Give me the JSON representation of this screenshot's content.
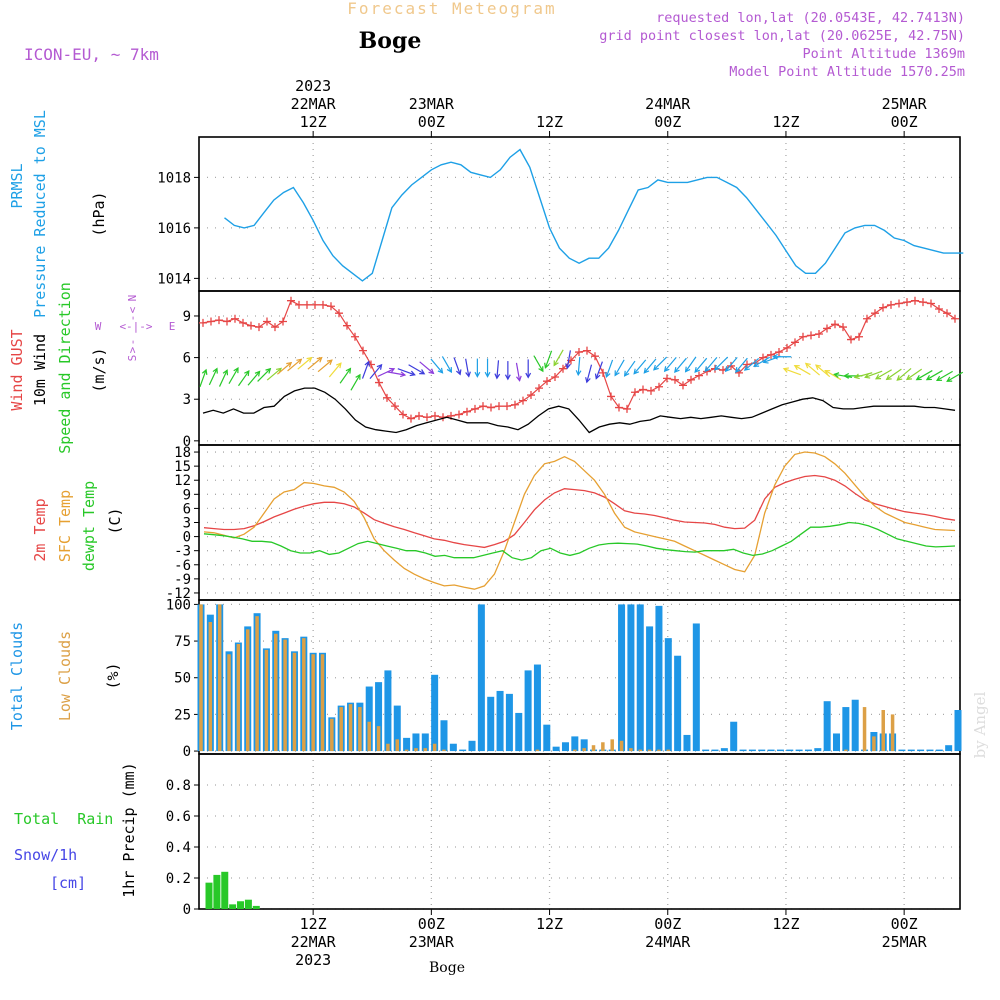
{
  "header": {
    "top_title": "Forecast Meteogram",
    "location": "Boge",
    "model": "ICON-EU, ~ 7km",
    "requested": "requested lon,lat (20.0543E, 42.7413N)",
    "grid_point": "grid point closest lon,lat (20.0625E, 42.75N)",
    "point_altitude": "Point Altitude 1369m",
    "model_altitude": "Model Point Altitude 1570.25m",
    "watermark": "by Angel",
    "bottom_location": "Boge"
  },
  "colors": {
    "pressure": "#1ea0e6",
    "gust": "#e64646",
    "wind": "#000000",
    "t2m": "#e64646",
    "sfc": "#e6a032",
    "dewpt": "#28c828",
    "total_clouds": "#1e96e6",
    "low_clouds": "#dca046",
    "rain": "#28c828",
    "snow": "#4646e6",
    "purple": "#b45ad2",
    "header_yellow": "#f0c88c"
  },
  "time_axis": {
    "start": "2023-03-22T03:00Z",
    "step_hours": 1,
    "top_ticks": [
      {
        "h": 9,
        "lines": [
          "2023",
          "22MAR",
          "12Z"
        ]
      },
      {
        "h": 21,
        "lines": [
          "23MAR",
          "00Z"
        ]
      },
      {
        "h": 33,
        "lines": [
          "12Z"
        ]
      },
      {
        "h": 45,
        "lines": [
          "24MAR",
          "00Z"
        ]
      },
      {
        "h": 57,
        "lines": [
          "12Z"
        ]
      },
      {
        "h": 69,
        "lines": [
          "25MAR",
          "00Z"
        ]
      }
    ],
    "bottom_ticks": [
      {
        "h": 9,
        "lines": [
          "12Z",
          "22MAR",
          "2023"
        ]
      },
      {
        "h": 21,
        "lines": [
          "00Z",
          "23MAR"
        ]
      },
      {
        "h": 33,
        "lines": [
          "12Z"
        ]
      },
      {
        "h": 45,
        "lines": [
          "00Z",
          "24MAR"
        ]
      },
      {
        "h": 57,
        "lines": [
          "12Z"
        ]
      },
      {
        "h": 69,
        "lines": [
          "00Z",
          "25MAR"
        ]
      }
    ]
  },
  "chart_data": [
    {
      "type": "line",
      "id": "pressure",
      "ylabel_lines": [
        "PRMSL",
        "Pressure Reduced to MSL",
        "(hPa)"
      ],
      "ylim": [
        1013.5,
        1019.6
      ],
      "yticks": [
        1014,
        1016,
        1018
      ],
      "series": [
        {
          "name": "PRMSL",
          "values": [
            1016.4,
            1016.1,
            1016.0,
            1016.1,
            1016.6,
            1017.1,
            1017.4,
            1017.6,
            1017.0,
            1016.3,
            1015.5,
            1014.9,
            1014.5,
            1014.2,
            1013.9,
            1014.2,
            1015.5,
            1016.8,
            1017.3,
            1017.7,
            1018.0,
            1018.3,
            1018.5,
            1018.6,
            1018.5,
            1018.2,
            1018.1,
            1018.0,
            1018.3,
            1018.8,
            1019.1,
            1018.4,
            1017.2,
            1016.0,
            1015.2,
            1014.8,
            1014.6,
            1014.8,
            1014.8,
            1015.2,
            1015.9,
            1016.7,
            1017.5,
            1017.6,
            1017.9,
            1017.8,
            1017.8,
            1017.8,
            1017.9,
            1018.0,
            1018.0,
            1017.8,
            1017.6,
            1017.2,
            1016.7,
            1016.2,
            1015.7,
            1015.1,
            1014.5,
            1014.2,
            1014.2,
            1014.6,
            1015.2,
            1015.8,
            1016.0,
            1016.1,
            1016.1,
            1015.9,
            1015.6,
            1015.5,
            1015.3,
            1015.2,
            1015.1,
            1015.0,
            1015.0,
            1015.0
          ]
        }
      ]
    },
    {
      "type": "line",
      "id": "wind",
      "ylabel_lines": [
        "Wind GUST",
        "10m Wind",
        "Speed and Direction",
        "(m/s)"
      ],
      "compass": {
        "n": "N",
        "w": "W",
        "e": "E",
        "s": "S"
      },
      "ylim": [
        -0.3,
        10.8
      ],
      "yticks": [
        0,
        3,
        6,
        9
      ],
      "series": [
        {
          "name": "Wind GUST",
          "values": [
            8.5,
            8.6,
            8.7,
            8.6,
            8.8,
            8.5,
            8.3,
            8.2,
            8.6,
            8.2,
            8.6,
            10.1,
            9.8,
            9.8,
            9.8,
            9.8,
            9.7,
            9.2,
            8.3,
            7.5,
            6.5,
            5.5,
            4.2,
            3.1,
            2.5,
            1.9,
            1.6,
            1.8,
            1.7,
            1.8,
            1.7,
            1.8,
            1.9,
            2.1,
            2.3,
            2.5,
            2.4,
            2.5,
            2.5,
            2.6,
            2.9,
            3.3,
            3.8,
            4.3,
            4.6,
            5.2,
            5.8,
            6.4,
            6.5,
            6.1,
            4.9,
            3.2,
            2.4,
            2.3,
            3.5,
            3.7,
            3.6,
            3.9,
            4.5,
            4.4,
            4.0,
            4.4,
            4.7,
            5.0,
            5.2,
            5.1,
            5.4,
            4.9,
            5.5,
            5.6,
            6.0,
            6.2,
            6.4,
            6.7,
            7.1,
            7.5,
            7.6,
            7.7,
            8.1,
            8.4,
            8.2,
            7.3,
            7.5,
            8.8,
            9.2,
            9.6,
            9.8,
            9.9,
            10.0,
            10.1,
            10.0,
            9.9,
            9.5,
            9.2,
            8.8
          ]
        },
        {
          "name": "10m Wind",
          "values": [
            2.0,
            2.2,
            2.0,
            2.3,
            2.0,
            2.0,
            2.4,
            2.5,
            3.2,
            3.6,
            3.8,
            3.8,
            3.5,
            3.0,
            2.3,
            1.5,
            1.0,
            0.8,
            0.7,
            0.6,
            0.8,
            1.1,
            1.3,
            1.5,
            1.7,
            1.5,
            1.3,
            1.3,
            1.3,
            1.1,
            1.0,
            0.8,
            1.2,
            1.8,
            2.3,
            2.5,
            2.3,
            1.5,
            0.6,
            1.0,
            1.2,
            1.3,
            1.2,
            1.4,
            1.5,
            1.8,
            1.7,
            1.6,
            1.7,
            1.6,
            1.7,
            1.8,
            1.7,
            1.6,
            1.7,
            2.0,
            2.3,
            2.6,
            2.8,
            3.0,
            3.1,
            2.9,
            2.4,
            2.3,
            2.3,
            2.4,
            2.5,
            2.5,
            2.5,
            2.5,
            2.5,
            2.4,
            2.4,
            2.3,
            2.2
          ]
        }
      ],
      "arrows": {
        "dir_deg": [
          200,
          205,
          205,
          210,
          215,
          220,
          225,
          230,
          230,
          230,
          230,
          230,
          230,
          220,
          215,
          210,
          200,
          220,
          245,
          280,
          290,
          300,
          310,
          320,
          330,
          340,
          350,
          0,
          0,
          5,
          0,
          350,
          0,
          330,
          20,
          30,
          10,
          5,
          15,
          20,
          20,
          30,
          35,
          40,
          40,
          45,
          40,
          40,
          35,
          40,
          40,
          45,
          40,
          40,
          50,
          60,
          70,
          90,
          110,
          120,
          130,
          130,
          120,
          100,
          90,
          75,
          70,
          60,
          55,
          50,
          55,
          60,
          60,
          60,
          60
        ],
        "colors": [
          "#28c828",
          "#28c828",
          "#28c828",
          "#28c828",
          "#28c828",
          "#28c828",
          "#28c828",
          "#8cd232",
          "#e6a032",
          "#e6a032",
          "#f0dc3c",
          "#e6a032",
          "#e6a032",
          "#f0dc3c",
          "#28c828",
          "#28c828",
          "#3c3cdc",
          "#3c3cdc",
          "#8c3cdc",
          "#8c3cdc",
          "#3c3cdc",
          "#3c3cdc",
          "#8c3cdc",
          "#1ea0e6",
          "#1ea0e6",
          "#3c3cdc",
          "#3c3cdc",
          "#1ea0e6",
          "#1ea0e6",
          "#3c3cdc",
          "#3c3cdc",
          "#8c3cdc",
          "#3c3cdc",
          "#28c828",
          "#28c828",
          "#8cd232",
          "#3c3cdc",
          "#1ea0e6",
          "#3c3cdc",
          "#3c3cdc",
          "#1ea0e6",
          "#1ea0e6",
          "#1ea0e6",
          "#1ea0e6",
          "#1ea0e6",
          "#1ea0e6",
          "#1ea0e6",
          "#1ea0e6",
          "#1ea0e6",
          "#1ea0e6",
          "#1ea0e6",
          "#1ea0e6",
          "#1ea0e6",
          "#1ea0e6",
          "#1ea0e6",
          "#1ea0e6",
          "#1ea0e6",
          "#1ea0e6",
          "#f0dc3c",
          "#f0dc3c",
          "#f0dc3c",
          "#f0dc3c",
          "#f0dc3c",
          "#28c828",
          "#28c828",
          "#8cd232",
          "#8cd232",
          "#8cd232",
          "#8cd232",
          "#8cd232",
          "#8cd232",
          "#28c828",
          "#28c828",
          "#28c828",
          "#28c828"
        ]
      }
    },
    {
      "type": "line",
      "id": "temperature",
      "ylabel_lines": [
        "2m Temp",
        "SFC Temp",
        "dewpt Temp",
        "(C)"
      ],
      "ylim": [
        -13.5,
        19.5
      ],
      "yticks": [
        -12,
        -9,
        -6,
        -3,
        0,
        3,
        6,
        9,
        12,
        15,
        18
      ],
      "series": [
        {
          "name": "2m Temp",
          "values": [
            1.9,
            1.7,
            1.5,
            1.5,
            1.7,
            2.3,
            3.2,
            4.2,
            5.0,
            5.8,
            6.5,
            7.0,
            7.3,
            7.3,
            7.0,
            6.3,
            5.0,
            3.6,
            2.8,
            2.1,
            1.5,
            0.8,
            0.2,
            -0.5,
            -0.8,
            -1.3,
            -1.7,
            -2.0,
            -2.3,
            -1.7,
            -1.0,
            0.4,
            3.0,
            5.7,
            7.8,
            9.3,
            10.2,
            10.0,
            9.8,
            9.3,
            8.4,
            7.0,
            5.5,
            5.0,
            4.8,
            4.5,
            4.0,
            3.5,
            3.1,
            3.0,
            2.9,
            2.6,
            2.0,
            1.7,
            1.8,
            3.5,
            8.0,
            10.5,
            11.5,
            12.2,
            12.8,
            13.0,
            12.7,
            12.0,
            10.8,
            9.2,
            7.8,
            7.0,
            6.4,
            5.8,
            5.3,
            5.0,
            4.7,
            4.3,
            3.8,
            3.5
          ]
        },
        {
          "name": "SFC Temp",
          "values": [
            1.0,
            0.8,
            0.3,
            -0.3,
            0.5,
            2.0,
            5.0,
            8.0,
            9.5,
            10.0,
            11.5,
            11.3,
            10.8,
            10.5,
            9.5,
            7.5,
            4.0,
            -0.5,
            -3.0,
            -5.0,
            -6.8,
            -8.0,
            -9.0,
            -9.8,
            -10.5,
            -10.3,
            -10.8,
            -11.2,
            -10.5,
            -8.0,
            -3.0,
            3.0,
            9.0,
            13.0,
            15.5,
            16.0,
            17.0,
            16.0,
            14.0,
            12.0,
            9.0,
            5.0,
            2.0,
            1.0,
            0.5,
            0.0,
            -0.5,
            -1.0,
            -2.0,
            -3.0,
            -4.0,
            -5.0,
            -6.0,
            -7.0,
            -7.5,
            -4.0,
            5.0,
            11.0,
            15.0,
            17.5,
            18.0,
            17.8,
            17.0,
            15.5,
            13.5,
            11.0,
            8.5,
            6.5,
            5.0,
            4.0,
            3.0,
            2.5,
            2.0,
            1.5,
            1.4,
            1.3
          ]
        },
        {
          "name": "dewpt Temp",
          "values": [
            0.6,
            0.4,
            0.2,
            -0.1,
            -0.5,
            -1.0,
            -1.0,
            -1.2,
            -2.0,
            -3.0,
            -3.5,
            -3.5,
            -3.0,
            -3.8,
            -3.5,
            -2.5,
            -1.5,
            -1.0,
            -1.5,
            -2.0,
            -2.5,
            -3.0,
            -3.0,
            -3.5,
            -4.2,
            -4.0,
            -4.5,
            -4.5,
            -4.5,
            -4.0,
            -3.5,
            -3.0,
            -4.5,
            -5.0,
            -4.5,
            -3.0,
            -2.5,
            -3.5,
            -4.0,
            -3.5,
            -2.5,
            -1.8,
            -1.5,
            -1.4,
            -1.5,
            -1.6,
            -2.0,
            -2.5,
            -2.8,
            -3.0,
            -3.2,
            -3.3,
            -3.0,
            -3.0,
            -3.0,
            -2.7,
            -3.5,
            -4.0,
            -3.7,
            -3.0,
            -2.0,
            -1.0,
            0.5,
            2.0,
            2.0,
            2.2,
            2.5,
            3.0,
            2.8,
            2.3,
            1.5,
            0.5,
            -0.5,
            -1.0,
            -1.5,
            -2.0,
            -2.2,
            -2.1,
            -2.0
          ]
        }
      ]
    },
    {
      "type": "bar",
      "id": "clouds",
      "ylabel_lines": [
        "Total Clouds",
        "Low Clouds",
        "(%)"
      ],
      "ylim": [
        -2,
        103
      ],
      "yticks": [
        0,
        25,
        50,
        75,
        100
      ],
      "series": [
        {
          "name": "Total Clouds",
          "values": [
            100,
            93,
            100,
            68,
            74,
            85,
            94,
            70,
            82,
            77,
            68,
            78,
            67,
            67,
            23,
            31,
            33,
            33,
            44,
            47,
            55,
            31,
            9,
            12,
            12,
            52,
            21,
            5,
            1,
            7,
            100,
            37,
            41,
            39,
            26,
            55,
            59,
            18,
            3,
            6,
            10,
            8,
            1,
            1,
            1,
            100,
            100,
            100,
            85,
            99,
            77,
            65,
            11,
            87,
            1,
            1,
            2,
            20,
            1,
            1,
            1,
            1,
            1,
            1,
            1,
            1,
            2,
            34,
            12,
            30,
            35,
            1,
            13,
            12,
            12,
            1,
            1,
            1,
            1,
            1,
            4,
            28
          ]
        },
        {
          "name": "Low Clouds",
          "values": [
            100,
            88,
            100,
            66,
            73,
            83,
            92,
            69,
            80,
            76,
            67,
            77,
            66,
            66,
            22,
            30,
            32,
            30,
            20,
            17,
            5,
            8,
            1,
            2,
            2,
            5,
            1,
            0,
            0,
            0,
            0,
            0,
            0,
            0,
            0,
            0,
            1,
            0,
            0,
            0,
            1,
            2,
            4,
            6,
            8,
            7,
            2,
            1,
            1,
            1,
            1,
            0,
            0,
            0,
            0,
            0,
            0,
            0,
            0,
            0,
            0,
            0,
            0,
            0,
            0,
            0,
            0,
            0,
            0,
            1,
            0,
            30,
            10,
            28,
            25,
            0,
            0,
            0,
            0,
            0,
            0,
            0,
            0,
            0,
            0,
            0
          ]
        }
      ]
    },
    {
      "type": "bar",
      "id": "precip",
      "ylabel_lines": [
        "1hr Precip (mm)"
      ],
      "legend_lines": [
        "Total  Rain",
        "Snow/1h",
        "[cm]"
      ],
      "ylim": [
        0,
        1.0
      ],
      "yticks": [
        0,
        0.2,
        0.4,
        0.6,
        0.8
      ],
      "series": [
        {
          "name": "Rain",
          "values": [
            0.17,
            0.22,
            0.24,
            0.03,
            0.05,
            0.06,
            0.02,
            0,
            0,
            0,
            0,
            0,
            0,
            0,
            0,
            0,
            0,
            0,
            0,
            0,
            0,
            0,
            0,
            0,
            0,
            0,
            0,
            0,
            0,
            0,
            0,
            0,
            0,
            0,
            0,
            0,
            0,
            0,
            0,
            0,
            0,
            0,
            0,
            0,
            0,
            0,
            0,
            0,
            0,
            0,
            0,
            0,
            0,
            0,
            0,
            0,
            0,
            0,
            0,
            0,
            0,
            0,
            0,
            0,
            0,
            0,
            0,
            0,
            0,
            0,
            0,
            0,
            0,
            0,
            0,
            0
          ]
        }
      ]
    }
  ]
}
